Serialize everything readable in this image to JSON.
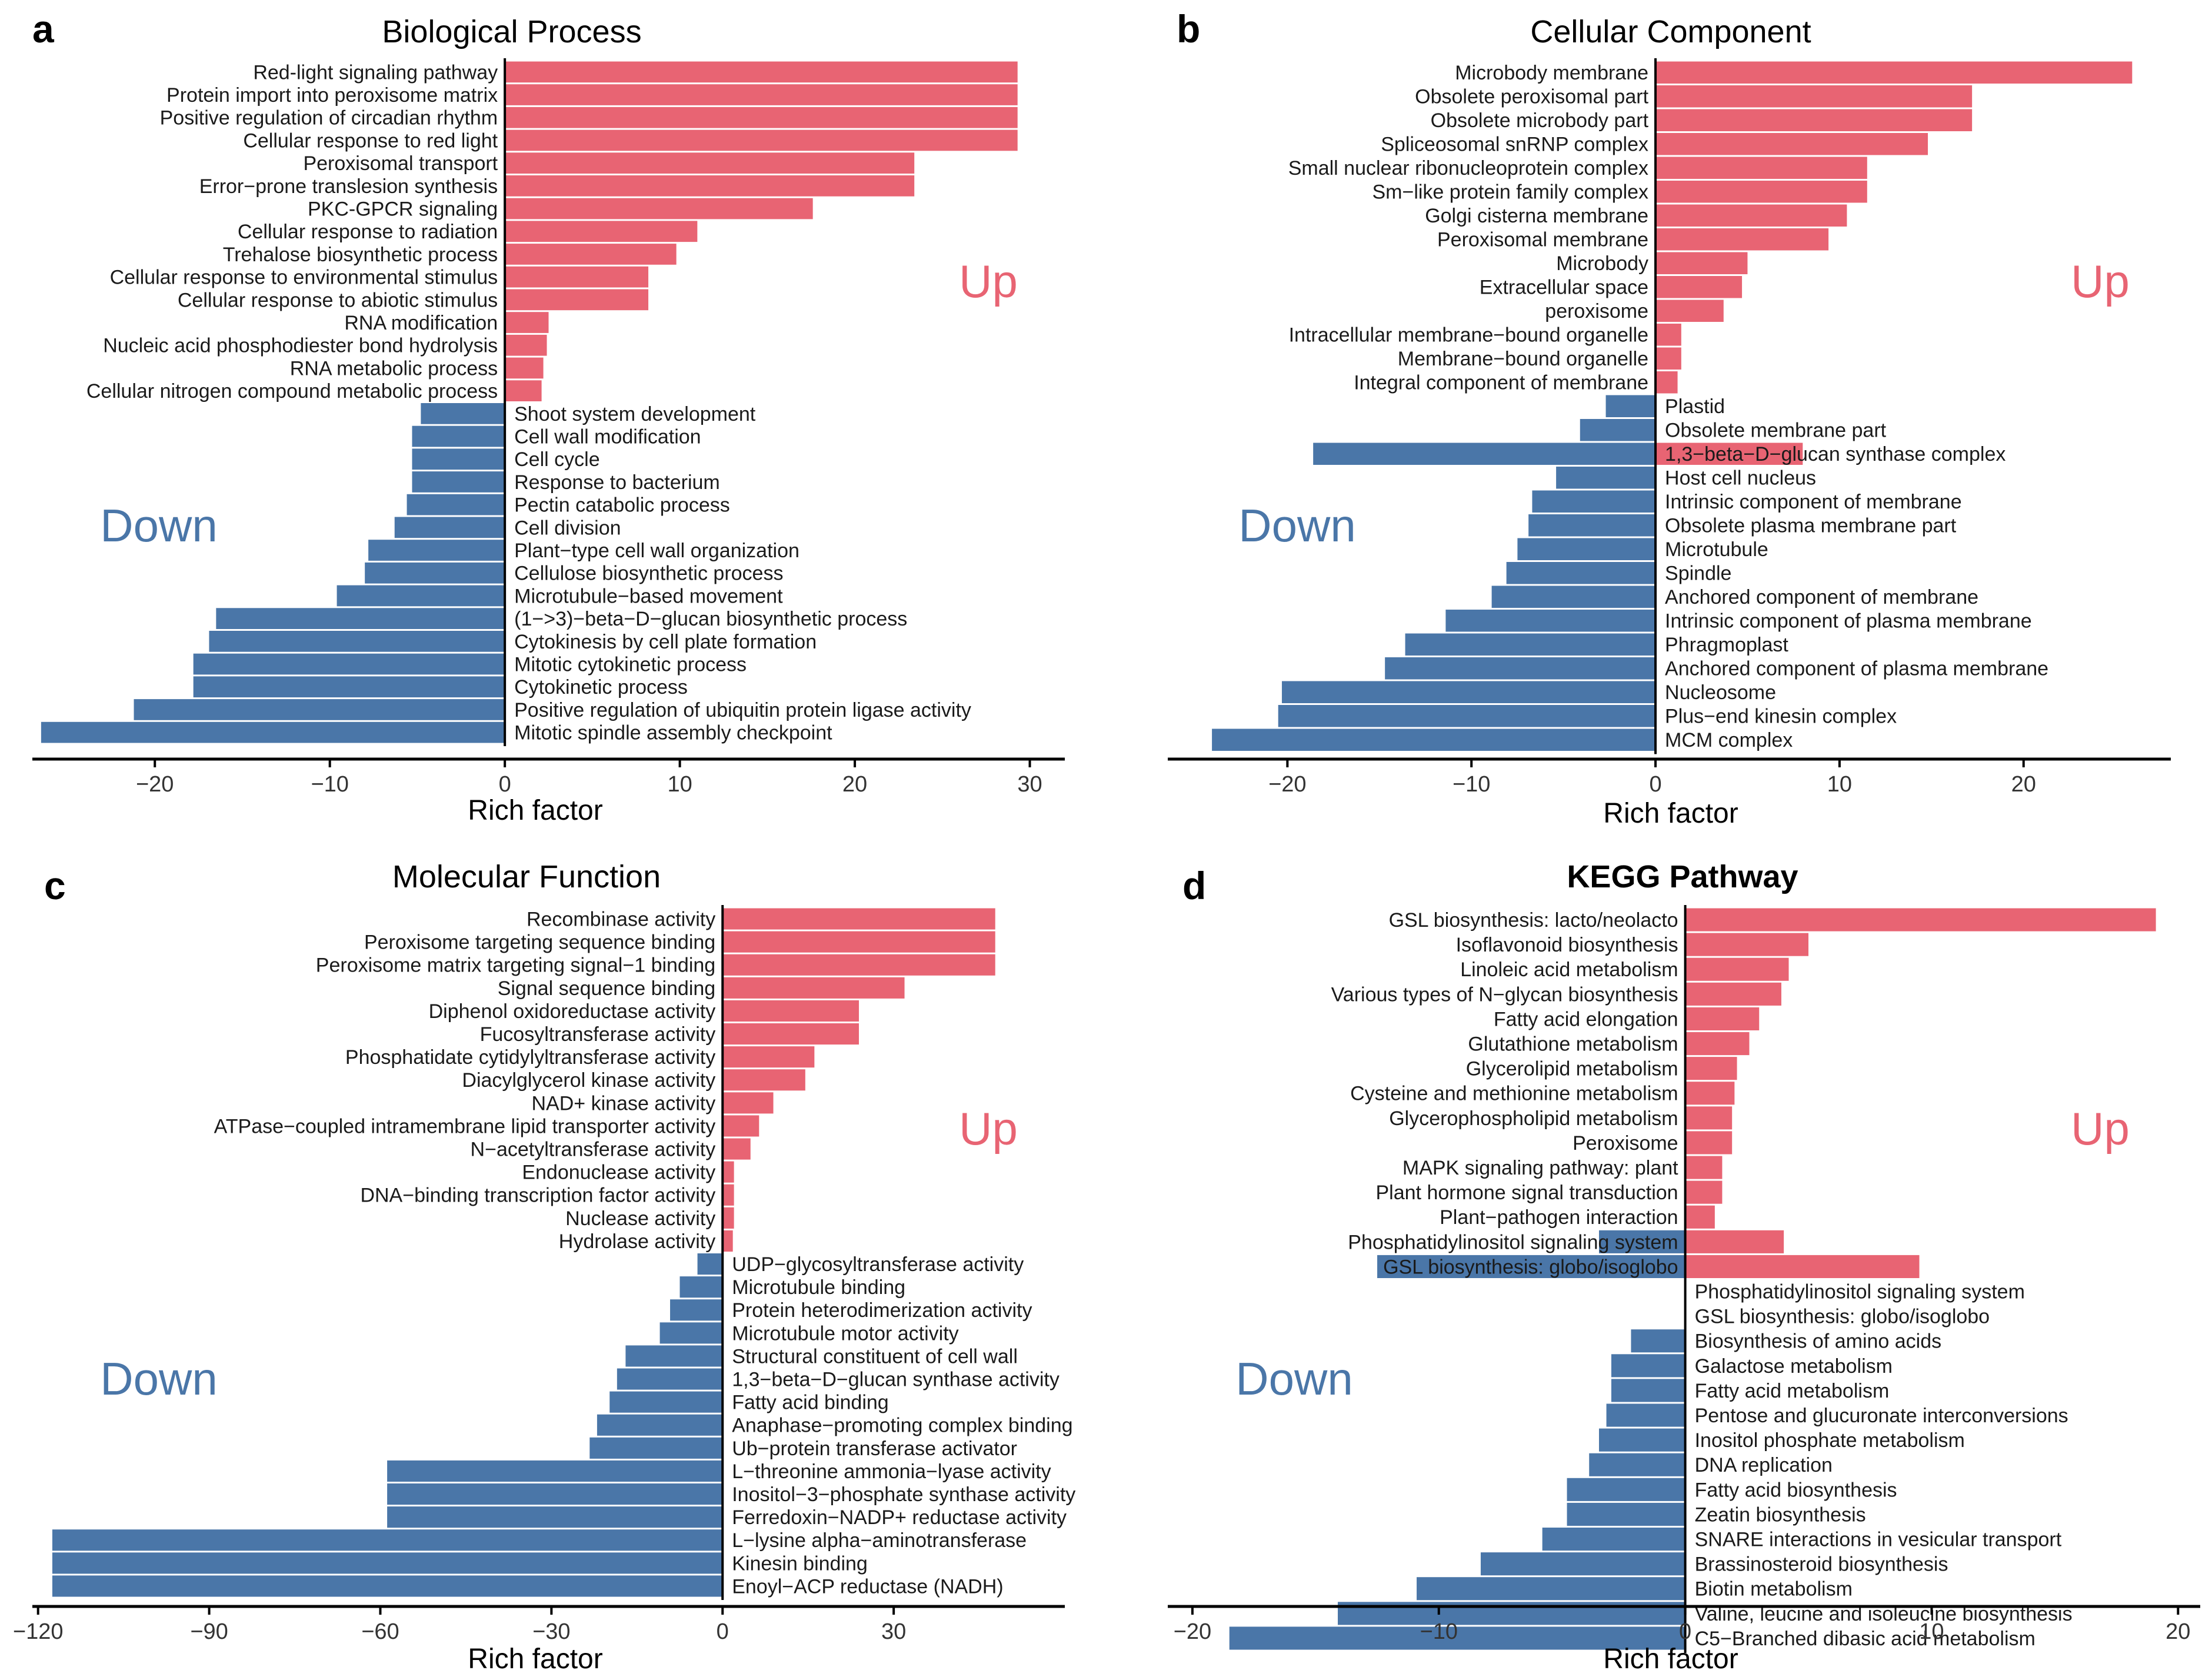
{
  "figure": {
    "panel_letters": [
      "a",
      "b",
      "c",
      "d"
    ]
  },
  "colors": {
    "up": "#E86473",
    "down": "#4A76A8",
    "axis": "#000000",
    "label": "#1A1A1A",
    "up_text": "#E86473",
    "down_text": "#4A76A8"
  },
  "chart_data": [
    {
      "type": "bar",
      "orientation": "horizontal",
      "panel": "a",
      "title": "Biological Process",
      "xlabel": "Rich factor",
      "ylabel": "",
      "xlim": [
        -27,
        32
      ],
      "xticks": [
        -20,
        -10,
        0,
        10,
        20,
        30
      ],
      "xtick_labels": [
        "−20",
        "−10",
        "0",
        "10",
        "20",
        "30"
      ],
      "annotations": {
        "up": "Up",
        "down": "Down"
      },
      "up": {
        "categories": [
          "Red-light signaling pathway",
          "Protein import into peroxisome matrix",
          "Positive regulation of circadian rhythm",
          "Cellular response to red light",
          "Peroxisomal transport",
          "Error−prone translesion synthesis",
          "PKC-GPCR signaling",
          "Cellular response to radiation",
          "Trehalose biosynthetic process",
          "Cellular response to environmental stimulus",
          "Cellular response to abiotic stimulus",
          "RNA modification",
          "Nucleic acid phosphodiester bond hydrolysis",
          "RNA metabolic process",
          "Cellular nitrogen compound metabolic process"
        ],
        "values": [
          29.3,
          29.3,
          29.3,
          29.3,
          23.4,
          23.4,
          17.6,
          11.0,
          9.8,
          8.2,
          8.2,
          2.5,
          2.4,
          2.2,
          2.1
        ]
      },
      "down": {
        "categories": [
          "Shoot system development",
          "Cell wall modification",
          "Cell cycle",
          "Response to bacterium",
          "Pectin catabolic process",
          "Cell division",
          "Plant−type cell wall organization",
          "Cellulose biosynthetic process",
          "Microtubule−based movement",
          "(1−>3)−beta−D−glucan biosynthetic process",
          "Cytokinesis by cell plate formation",
          "Mitotic cytokinetic process",
          "Cytokinetic process",
          "Positive regulation of ubiquitin protein ligase activity",
          "Mitotic spindle assembly checkpoint"
        ],
        "values": [
          -4.8,
          -5.3,
          -5.3,
          -5.3,
          -5.6,
          -6.3,
          -7.8,
          -8.0,
          -9.6,
          -16.5,
          -16.9,
          -17.8,
          -17.8,
          -21.2,
          -26.5
        ]
      }
    },
    {
      "type": "bar",
      "orientation": "horizontal",
      "panel": "b",
      "title": "Cellular Component",
      "xlabel": "Rich factor",
      "ylabel": "",
      "xlim": [
        -26.5,
        28
      ],
      "xticks": [
        -20,
        -10,
        0,
        10,
        20
      ],
      "xtick_labels": [
        "−20",
        "−10",
        "0",
        "10",
        "20"
      ],
      "annotations": {
        "up": "Up",
        "down": "Down"
      },
      "up": {
        "categories": [
          "Microbody membrane",
          "Obsolete peroxisomal part",
          "Obsolete microbody part",
          "Spliceosomal snRNP complex",
          "Small nuclear ribonucleoprotein complex",
          "Sm−like protein family complex",
          "Golgi cisterna membrane",
          "Peroxisomal membrane",
          "Microbody",
          "Extracellular space",
          "peroxisome",
          "Intracellular membrane−bound organelle",
          "Membrane−bound organelle",
          "Integral component of membrane"
        ],
        "values": [
          25.9,
          17.2,
          17.2,
          14.8,
          11.5,
          11.5,
          10.4,
          9.4,
          5.0,
          4.7,
          3.7,
          1.4,
          1.4,
          1.2
        ]
      },
      "down": {
        "categories": [
          "Plastid",
          "Obsolete membrane part",
          "1,3−beta−D−glucan synthase complex",
          "Host cell nucleus",
          "Intrinsic component of membrane",
          "Obsolete plasma membrane part",
          "Microtubule",
          "Spindle",
          "Anchored component of membrane",
          "Intrinsic component of plasma membrane",
          "Phragmoplast",
          "Anchored component of plasma membrane",
          "Nucleosome",
          "Plus−end kinesin complex",
          "MCM complex"
        ],
        "values": [
          -2.7,
          -4.1,
          -18.6,
          -5.4,
          -6.7,
          -6.9,
          -7.5,
          -8.1,
          -8.9,
          -11.4,
          -13.6,
          -14.7,
          -20.3,
          -20.5,
          -24.1
        ],
        "overlay_up_values": [
          null,
          null,
          8.0,
          null,
          null,
          null,
          null,
          null,
          null,
          null,
          null,
          null,
          null,
          null,
          null
        ]
      }
    },
    {
      "type": "bar",
      "orientation": "horizontal",
      "panel": "c",
      "title": "Molecular Function",
      "xlabel": "Rich factor",
      "ylabel": "",
      "xlim": [
        -121,
        60
      ],
      "xticks": [
        -120,
        -90,
        -60,
        -30,
        0,
        30
      ],
      "xtick_labels": [
        "−120",
        "−90",
        "−60",
        "−30",
        "0",
        "30"
      ],
      "annotations": {
        "up": "Up",
        "down": "Down"
      },
      "up": {
        "categories": [
          "Recombinase activity",
          "Peroxisome targeting sequence binding",
          "Peroxisome matrix targeting signal−1 binding",
          "Signal sequence binding",
          "Diphenol oxidoreductase activity",
          "Fucosyltransferase activity",
          "Phosphatidate cytidylyltransferase activity",
          "Diacylglycerol kinase activity",
          "NAD+ kinase activity",
          "ATPase−coupled intramembrane lipid transporter activity",
          "N−acetyltransferase activity",
          "Endonuclease activity",
          "DNA−binding transcription factor activity",
          "Nuclease activity",
          "Hydrolase activity"
        ],
        "values": [
          47.8,
          47.8,
          47.8,
          31.9,
          23.9,
          23.9,
          16.1,
          14.5,
          8.9,
          6.4,
          4.9,
          2.0,
          2.0,
          2.0,
          1.8
        ]
      },
      "down": {
        "categories": [
          "UDP−glycosyltransferase activity",
          "Microtubule binding",
          "Protein heterodimerization activity",
          "Microtubule motor activity",
          "Structural constituent of cell wall",
          "1,3−beta−D−glucan synthase activity",
          "Fatty acid binding",
          "Anaphase−promoting complex binding",
          "Ub−protein transferase activator",
          "L−threonine ammonia−lyase activity",
          "Inositol−3−phosphate synthase activity",
          "Ferredoxin−NADP+ reductase activity",
          "L−lysine alpha−aminotransferase",
          "Kinesin binding",
          "Enoyl−ACP reductase (NADH)"
        ],
        "values": [
          -4.4,
          -7.5,
          -9.2,
          -11.0,
          -17.0,
          -18.5,
          -19.8,
          -22.0,
          -23.3,
          -58.8,
          -58.8,
          -58.8,
          -117.5,
          -117.5,
          -117.5
        ]
      }
    },
    {
      "type": "bar",
      "orientation": "horizontal",
      "panel": "d",
      "title": "KEGG Pathway",
      "xlabel": "Rich factor",
      "ylabel": "",
      "xlim": [
        -21,
        20.9
      ],
      "xticks": [
        -20,
        -10,
        0,
        10,
        20
      ],
      "xtick_labels": [
        "−20",
        "−10",
        "0",
        "10",
        "20"
      ],
      "annotations": {
        "up": "Up",
        "down": "Down"
      },
      "up": {
        "categories": [
          "GSL biosynthesis: lacto/neolacto",
          "Isoflavonoid biosynthesis",
          "Linoleic acid metabolism",
          "Various types of N−glycan biosynthesis",
          "Fatty acid elongation",
          "Glutathione metabolism",
          "Glycerolipid metabolism",
          "Cysteine and methionine metabolism",
          "Glycerophospholipid metabolism",
          "Peroxisome",
          "MAPK signaling pathway: plant",
          "Plant hormone signal transduction",
          "Plant−pathogen interaction",
          "Phosphatidylinositol signaling system",
          "GSL biosynthesis: globo/isoglobo"
        ],
        "values": [
          19.1,
          5.0,
          4.2,
          3.9,
          3.0,
          2.6,
          2.1,
          2.0,
          1.9,
          1.9,
          1.5,
          1.5,
          1.2,
          4.0,
          9.5
        ],
        "overlay_down_values": [
          null,
          null,
          null,
          null,
          null,
          null,
          null,
          null,
          null,
          null,
          null,
          null,
          null,
          -3.5,
          -12.5
        ]
      },
      "down": {
        "categories": [
          "Phosphatidylinositol signaling system",
          "GSL biosynthesis: globo/isoglobo",
          "Biosynthesis of amino acids",
          "Galactose metabolism",
          "Fatty acid metabolism",
          "Pentose and glucuronate interconversions",
          "Inositol phosphate metabolism",
          "DNA replication",
          "Fatty acid biosynthesis",
          "Zeatin biosynthesis",
          "SNARE interactions in vesicular transport",
          "Brassinosteroid biosynthesis",
          "Biotin metabolism",
          "Valine, leucine and isoleucine biosynthesis",
          "C5−Branched dibasic acid metabolism"
        ],
        "values": [
          null,
          null,
          -2.2,
          -3.0,
          -3.0,
          -3.2,
          -3.5,
          -3.9,
          -4.8,
          -4.8,
          -5.8,
          -8.3,
          -10.9,
          -14.1,
          -18.5
        ]
      }
    }
  ]
}
